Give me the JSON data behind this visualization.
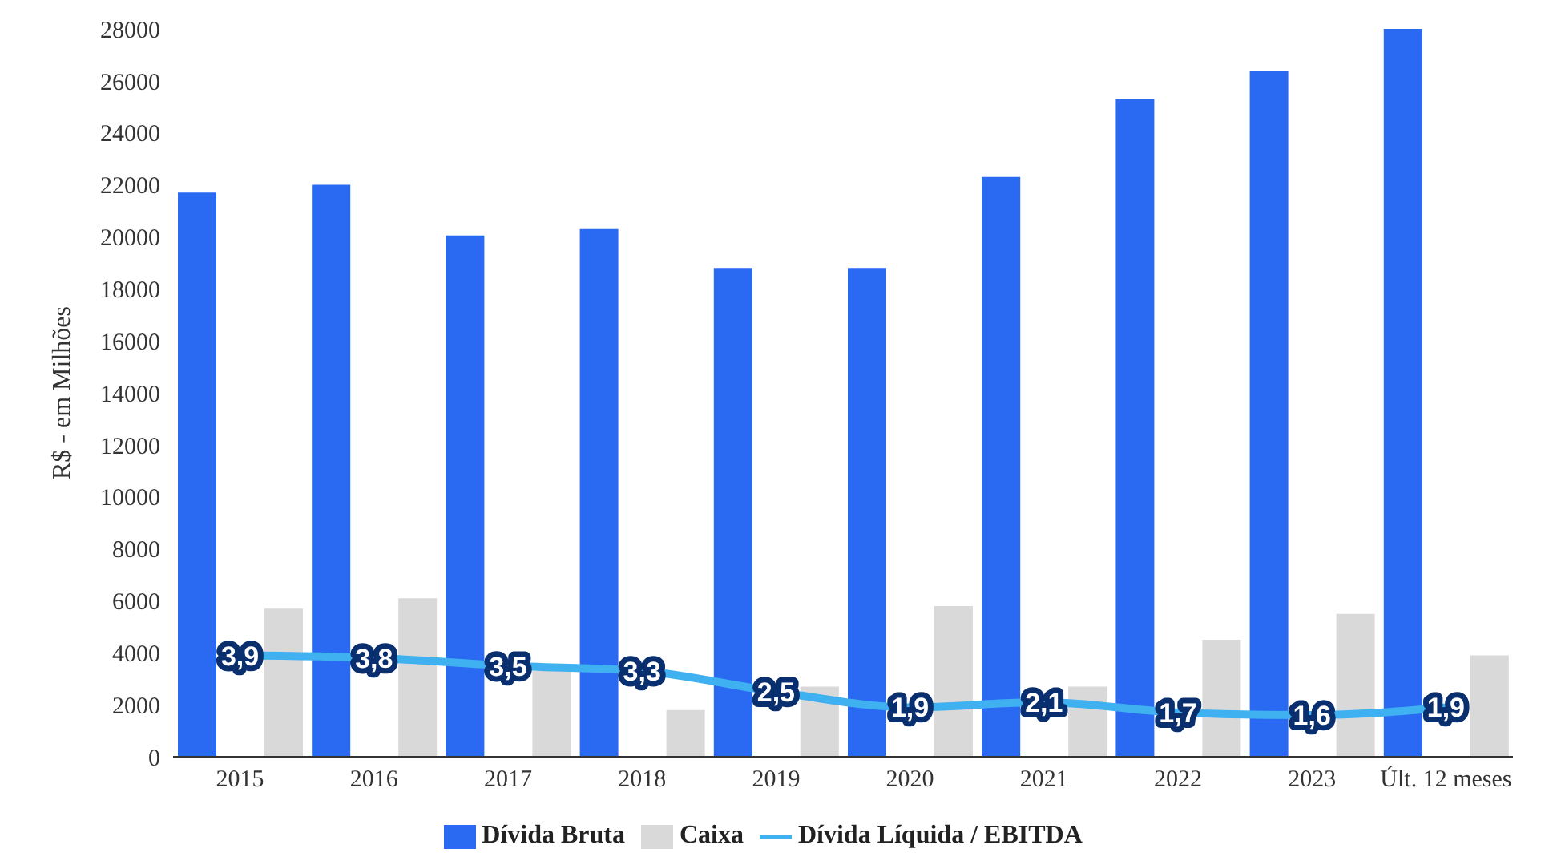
{
  "chart_data": {
    "type": "bar",
    "ylabel": "R$ - em Milhões",
    "categories": [
      "2015",
      "2016",
      "2017",
      "2018",
      "2019",
      "2020",
      "2021",
      "2022",
      "2023",
      "Últ. 12 meses"
    ],
    "series": [
      {
        "name": "Dívida Bruta",
        "color": "#2a6af3",
        "values": [
          21700,
          22000,
          20050,
          20300,
          18800,
          18800,
          22300,
          25300,
          26400,
          28000
        ]
      },
      {
        "name": "Caixa",
        "color": "#d9d9d9",
        "values": [
          5700,
          6100,
          3300,
          1800,
          2700,
          5800,
          2700,
          4500,
          5500,
          3900
        ]
      },
      {
        "name": "Dívida Líquida / EBITDA",
        "type": "line",
        "axis": "y2",
        "color": "#3fb0f0",
        "values": [
          3.9,
          3.8,
          3.5,
          3.3,
          2.5,
          1.9,
          2.1,
          1.7,
          1.6,
          1.9
        ],
        "value_labels": [
          "3,9",
          "3,8",
          "3,5",
          "3,3",
          "2,5",
          "1,9",
          "2,1",
          "1,7",
          "1,6",
          "1,9"
        ]
      }
    ],
    "ylim": [
      0,
      28000
    ],
    "yticks": [
      0,
      2000,
      4000,
      6000,
      8000,
      10000,
      12000,
      14000,
      16000,
      18000,
      20000,
      22000,
      24000,
      26000,
      28000
    ],
    "y2lim": [
      0,
      28
    ],
    "legend": "bottom"
  }
}
